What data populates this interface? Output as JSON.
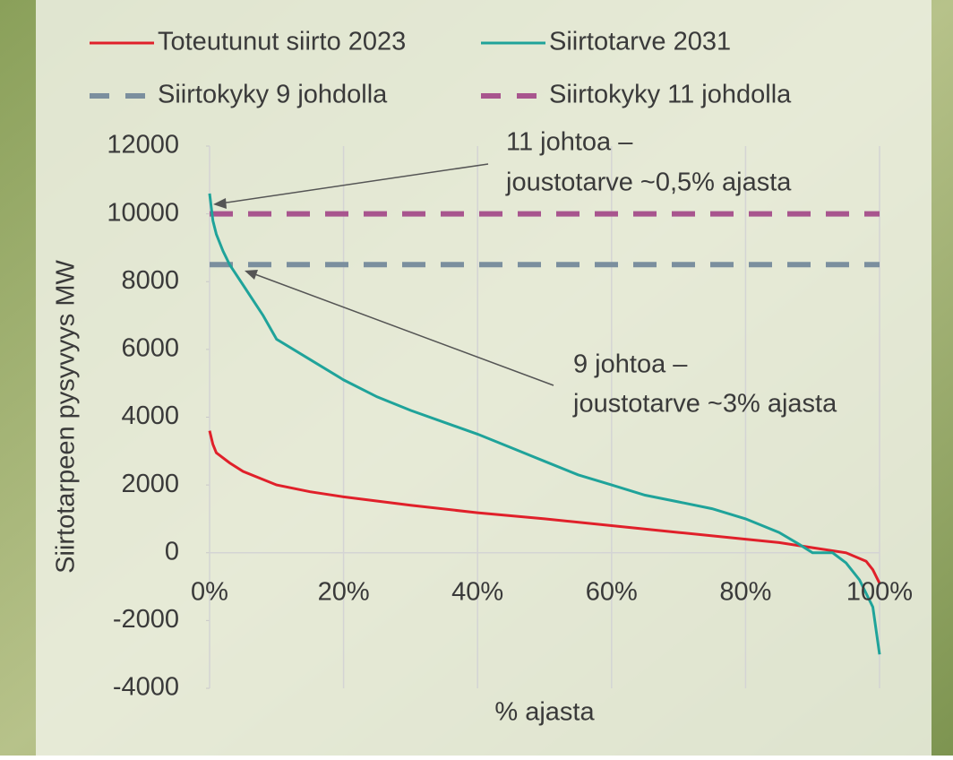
{
  "chart_data": {
    "type": "line",
    "legend": "top",
    "grid": "x",
    "y_label": "Siirtotarpeen pysyvyys MW",
    "x_label": "% ajasta",
    "xlim": [
      0,
      100
    ],
    "xticks": [
      {
        "value": 0,
        "label": "0%"
      },
      {
        "value": 20,
        "label": "20%"
      },
      {
        "value": 40,
        "label": "40%"
      },
      {
        "value": 60,
        "label": "60%"
      },
      {
        "value": 80,
        "label": "80%"
      },
      {
        "value": 100,
        "label": "100%"
      }
    ],
    "ylim": [
      -4000,
      12000
    ],
    "yticks": [
      -4000,
      -2000,
      0,
      2000,
      4000,
      6000,
      8000,
      10000,
      12000
    ],
    "series": [
      {
        "name": "Toteutunut siirto 2023",
        "color": "#e0202a",
        "dash": false,
        "x": [
          0,
          0.5,
          1,
          3,
          5,
          10,
          15,
          20,
          30,
          40,
          50,
          60,
          70,
          80,
          85,
          90,
          95,
          98,
          99,
          100
        ],
        "values": [
          3600,
          3200,
          2950,
          2650,
          2400,
          2000,
          1800,
          1650,
          1400,
          1180,
          1000,
          800,
          600,
          400,
          300,
          150,
          0,
          -250,
          -500,
          -900
        ]
      },
      {
        "name": "Siirtotarve 2031",
        "color": "#1fa39a",
        "dash": false,
        "x": [
          0,
          0.5,
          1,
          2,
          3,
          5,
          8,
          10,
          15,
          20,
          25,
          30,
          35,
          40,
          45,
          50,
          55,
          60,
          65,
          70,
          75,
          80,
          85,
          88,
          90,
          93,
          95,
          97,
          99,
          100
        ],
        "values": [
          10600,
          9800,
          9400,
          8900,
          8500,
          7900,
          7000,
          6300,
          5700,
          5100,
          4600,
          4200,
          3850,
          3500,
          3100,
          2700,
          2300,
          2000,
          1700,
          1500,
          1300,
          1000,
          600,
          250,
          0,
          0,
          -300,
          -800,
          -1600,
          -3000
        ]
      },
      {
        "name": "Siirtokyky 9 johdolla",
        "color": "#7b8f9e",
        "dash": true,
        "x": [
          0,
          100
        ],
        "values": [
          8500,
          8500
        ]
      },
      {
        "name": "Siirtokyky 11 johdolla",
        "color": "#a8558e",
        "dash": true,
        "x": [
          0,
          100
        ],
        "values": [
          10000,
          10000
        ]
      }
    ],
    "annotations": [
      {
        "lines": [
          "11 johtoa –",
          "joustotarve ~0,5% ajasta"
        ]
      },
      {
        "lines": [
          "9 johtoa –",
          "joustotarve ~3% ajasta"
        ]
      }
    ]
  }
}
